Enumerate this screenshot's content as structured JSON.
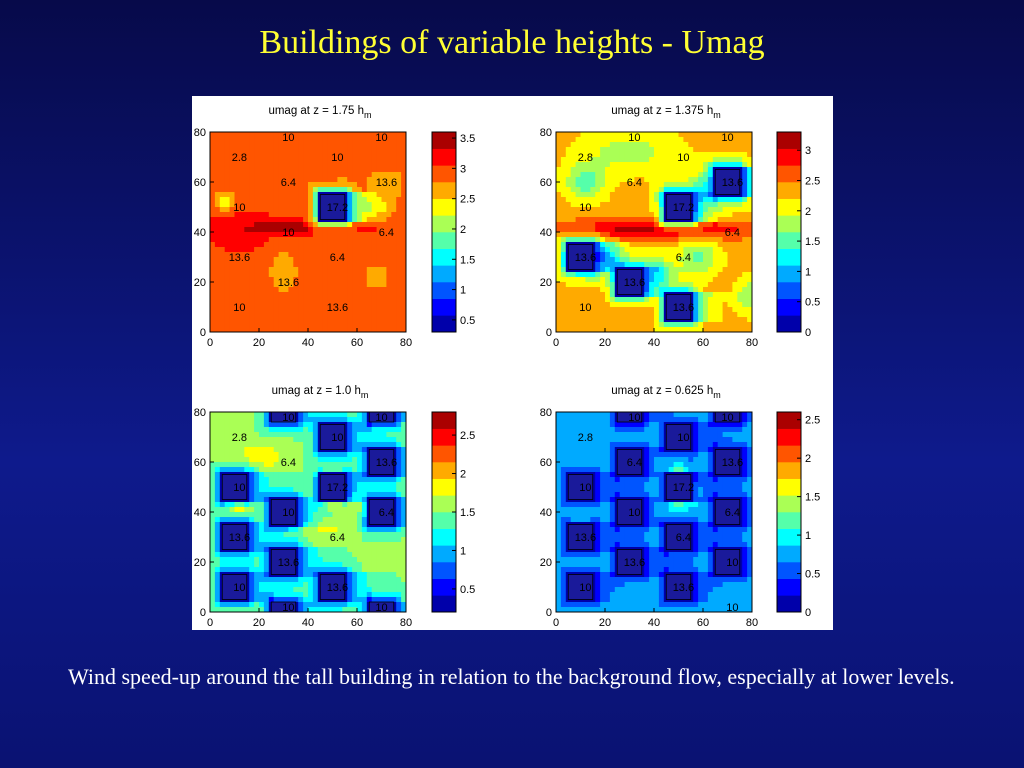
{
  "slide": {
    "title": "Buildings of variable heights - Umag",
    "caption": "Wind speed-up around the tall building in relation to the background flow, especially at lower levels."
  },
  "colors": {
    "background": "#0b1370",
    "title": "#ffff33",
    "caption": "#ffffff"
  },
  "chart_data": [
    {
      "type": "heatmap",
      "title": "umag at z = 1.75 h",
      "title_sub": "m",
      "xlim": [
        0,
        80
      ],
      "ylim": [
        0,
        80
      ],
      "xticks": [
        "0",
        "20",
        "40",
        "60",
        "80"
      ],
      "yticks": [
        "0",
        "20",
        "40",
        "60",
        "80"
      ],
      "colorbar": {
        "min": 0.3,
        "max": 3.6,
        "ticks": [
          "0.5",
          "1",
          "1.5",
          "2",
          "2.5",
          "3",
          "3.5"
        ],
        "tick_values": [
          0.5,
          1,
          1.5,
          2,
          2.5,
          3,
          3.5
        ]
      },
      "background_value": 2.95,
      "features": [
        {
          "x": 40,
          "y": 42,
          "sx": 16,
          "sy": 2.5,
          "a": 0.55
        },
        {
          "x": 12,
          "y": 40,
          "sx": 10,
          "sy": 6,
          "a": 0.25
        },
        {
          "x": 72,
          "y": 60,
          "sx": 6,
          "sy": 4,
          "a": -0.35
        },
        {
          "x": 66,
          "y": 50,
          "sx": 6,
          "sy": 3,
          "a": -0.5
        },
        {
          "x": 30,
          "y": 24,
          "sx": 5,
          "sy": 8,
          "a": -0.3
        },
        {
          "x": 68,
          "y": 22,
          "sx": 5,
          "sy": 6,
          "a": -0.25
        },
        {
          "x": 6,
          "y": 52,
          "sx": 3,
          "sy": 3,
          "a": -0.6
        }
      ],
      "buildings": [
        {
          "x0": 45,
          "y0": 45,
          "x1": 55,
          "y1": 55
        }
      ],
      "labels": [
        {
          "x": 32,
          "y": 78,
          "text": "10"
        },
        {
          "x": 70,
          "y": 78,
          "text": "10"
        },
        {
          "x": 12,
          "y": 70,
          "text": "2.8"
        },
        {
          "x": 52,
          "y": 70,
          "text": "10"
        },
        {
          "x": 32,
          "y": 60,
          "text": "6.4"
        },
        {
          "x": 72,
          "y": 60,
          "text": "13.6"
        },
        {
          "x": 12,
          "y": 50,
          "text": "10"
        },
        {
          "x": 52,
          "y": 50,
          "text": "17.2"
        },
        {
          "x": 32,
          "y": 40,
          "text": "10"
        },
        {
          "x": 72,
          "y": 40,
          "text": "6.4"
        },
        {
          "x": 12,
          "y": 30,
          "text": "13.6"
        },
        {
          "x": 52,
          "y": 30,
          "text": "6.4"
        },
        {
          "x": 32,
          "y": 20,
          "text": "13.6"
        },
        {
          "x": 12,
          "y": 10,
          "text": "10"
        },
        {
          "x": 52,
          "y": 10,
          "text": "13.6"
        }
      ]
    },
    {
      "type": "heatmap",
      "title": "umag at z = 1.375 h",
      "title_sub": "m",
      "xlim": [
        0,
        80
      ],
      "ylim": [
        0,
        80
      ],
      "xticks": [
        "0",
        "20",
        "40",
        "60",
        "80"
      ],
      "yticks": [
        "0",
        "20",
        "40",
        "60",
        "80"
      ],
      "colorbar": {
        "min": 0,
        "max": 3.3,
        "ticks": [
          "0",
          "0.5",
          "1",
          "1.5",
          "2",
          "2.5",
          "3"
        ],
        "tick_values": [
          0,
          0.5,
          1,
          1.5,
          2,
          2.5,
          3
        ]
      },
      "background_value": 2.3,
      "features": [
        {
          "x": 40,
          "y": 41,
          "sx": 30,
          "sy": 3,
          "a": 0.9
        },
        {
          "x": 40,
          "y": 10,
          "sx": 28,
          "sy": 6,
          "a": 0.25
        },
        {
          "x": 30,
          "y": 72,
          "sx": 14,
          "sy": 6,
          "a": -0.5
        },
        {
          "x": 12,
          "y": 60,
          "sx": 6,
          "sy": 5,
          "a": -0.8
        },
        {
          "x": 62,
          "y": 58,
          "sx": 5,
          "sy": 4,
          "a": -0.8
        },
        {
          "x": 58,
          "y": 30,
          "sx": 6,
          "sy": 5,
          "a": -0.7
        },
        {
          "x": 42,
          "y": 24,
          "sx": 4,
          "sy": 4,
          "a": -0.8
        },
        {
          "x": 80,
          "y": 14,
          "sx": 5,
          "sy": 5,
          "a": -0.7
        },
        {
          "x": 20,
          "y": 30,
          "sx": 5,
          "sy": 4,
          "a": -0.9
        }
      ],
      "buildings": [
        {
          "x0": 45,
          "y0": 45,
          "x1": 55,
          "y1": 55
        },
        {
          "x0": 65,
          "y0": 55,
          "x1": 75,
          "y1": 65
        },
        {
          "x0": 5,
          "y0": 25,
          "x1": 15,
          "y1": 35
        },
        {
          "x0": 25,
          "y0": 15,
          "x1": 35,
          "y1": 25
        },
        {
          "x0": 45,
          "y0": 5,
          "x1": 55,
          "y1": 15
        }
      ],
      "labels": [
        {
          "x": 32,
          "y": 78,
          "text": "10"
        },
        {
          "x": 70,
          "y": 78,
          "text": "10"
        },
        {
          "x": 12,
          "y": 70,
          "text": "2.8"
        },
        {
          "x": 52,
          "y": 70,
          "text": "10"
        },
        {
          "x": 32,
          "y": 60,
          "text": "6.4"
        },
        {
          "x": 72,
          "y": 60,
          "text": "13.6"
        },
        {
          "x": 12,
          "y": 50,
          "text": "10"
        },
        {
          "x": 52,
          "y": 50,
          "text": "17.2"
        },
        {
          "x": 72,
          "y": 40,
          "text": "6.4"
        },
        {
          "x": 12,
          "y": 30,
          "text": "13.6"
        },
        {
          "x": 52,
          "y": 30,
          "text": "6.4"
        },
        {
          "x": 32,
          "y": 20,
          "text": "13.6"
        },
        {
          "x": 12,
          "y": 10,
          "text": "10"
        },
        {
          "x": 52,
          "y": 10,
          "text": "13.6"
        }
      ]
    },
    {
      "type": "heatmap",
      "title": "umag at z = 1.0 h",
      "title_sub": "m",
      "xlim": [
        0,
        80
      ],
      "ylim": [
        0,
        80
      ],
      "xticks": [
        "0",
        "20",
        "40",
        "60",
        "80"
      ],
      "yticks": [
        "0",
        "20",
        "40",
        "60",
        "80"
      ],
      "colorbar": {
        "min": 0.2,
        "max": 2.8,
        "ticks": [
          "0.5",
          "1",
          "1.5",
          "2",
          "2.5"
        ],
        "tick_values": [
          0.5,
          1,
          1.5,
          2,
          2.5
        ]
      },
      "background_value": 1.55,
      "features": [
        {
          "x": 50,
          "y": 44,
          "sx": 4,
          "sy": 1.8,
          "a": 1.1
        },
        {
          "x": 50,
          "y": 56,
          "sx": 4,
          "sy": 1.8,
          "a": 1.0
        },
        {
          "x": 12,
          "y": 42,
          "sx": 4,
          "sy": 2,
          "a": 0.7
        },
        {
          "x": 62,
          "y": 44,
          "sx": 10,
          "sy": 3,
          "a": 0.5
        },
        {
          "x": 40,
          "y": 34,
          "sx": 18,
          "sy": 3,
          "a": 0.25
        },
        {
          "x": 20,
          "y": 62,
          "sx": 8,
          "sy": 4,
          "a": 0.3
        }
      ],
      "buildings": [
        {
          "x0": 5,
          "y0": 45,
          "x1": 15,
          "y1": 55
        },
        {
          "x0": 25,
          "y0": 35,
          "x1": 35,
          "y1": 45
        },
        {
          "x0": 45,
          "y0": 45,
          "x1": 55,
          "y1": 55
        },
        {
          "x0": 65,
          "y0": 35,
          "x1": 75,
          "y1": 45
        },
        {
          "x0": 5,
          "y0": 25,
          "x1": 15,
          "y1": 35
        },
        {
          "x0": 25,
          "y0": 15,
          "x1": 35,
          "y1": 25
        },
        {
          "x0": 45,
          "y0": 5,
          "x1": 55,
          "y1": 15
        },
        {
          "x0": 5,
          "y0": 5,
          "x1": 15,
          "y1": 15
        },
        {
          "x0": 25,
          "y0": 0,
          "x1": 35,
          "y1": 4
        },
        {
          "x0": 65,
          "y0": 0,
          "x1": 75,
          "y1": 4
        },
        {
          "x0": 45,
          "y0": 65,
          "x1": 55,
          "y1": 75
        },
        {
          "x0": 65,
          "y0": 55,
          "x1": 75,
          "y1": 65
        },
        {
          "x0": 25,
          "y0": 76,
          "x1": 35,
          "y1": 80
        },
        {
          "x0": 65,
          "y0": 76,
          "x1": 75,
          "y1": 80
        }
      ],
      "labels": [
        {
          "x": 32,
          "y": 78,
          "text": "10"
        },
        {
          "x": 70,
          "y": 78,
          "text": "10"
        },
        {
          "x": 12,
          "y": 70,
          "text": "2.8"
        },
        {
          "x": 52,
          "y": 70,
          "text": "10"
        },
        {
          "x": 32,
          "y": 60,
          "text": "6.4"
        },
        {
          "x": 72,
          "y": 60,
          "text": "13.6"
        },
        {
          "x": 12,
          "y": 50,
          "text": "10"
        },
        {
          "x": 52,
          "y": 50,
          "text": "17.2"
        },
        {
          "x": 32,
          "y": 40,
          "text": "10"
        },
        {
          "x": 72,
          "y": 40,
          "text": "6.4"
        },
        {
          "x": 12,
          "y": 30,
          "text": "13.6"
        },
        {
          "x": 52,
          "y": 30,
          "text": "6.4"
        },
        {
          "x": 32,
          "y": 20,
          "text": "13.6"
        },
        {
          "x": 12,
          "y": 10,
          "text": "10"
        },
        {
          "x": 52,
          "y": 10,
          "text": "13.6"
        },
        {
          "x": 32,
          "y": 2,
          "text": "10"
        },
        {
          "x": 70,
          "y": 2,
          "text": "10"
        }
      ]
    },
    {
      "type": "heatmap",
      "title": "umag at z = 0.625 h",
      "title_sub": "m",
      "xlim": [
        0,
        80
      ],
      "ylim": [
        0,
        80
      ],
      "xticks": [
        "0",
        "20",
        "40",
        "60",
        "80"
      ],
      "yticks": [
        "0",
        "20",
        "40",
        "60",
        "80"
      ],
      "colorbar": {
        "min": 0,
        "max": 2.6,
        "ticks": [
          "0",
          "0.5",
          "1",
          "1.5",
          "2",
          "2.5"
        ],
        "tick_values": [
          0,
          0.5,
          1,
          1.5,
          2,
          2.5
        ]
      },
      "background_value": 0.85,
      "features": [
        {
          "x": 50,
          "y": 44,
          "sx": 3.5,
          "sy": 1.8,
          "a": 1.5
        },
        {
          "x": 50,
          "y": 56,
          "sx": 3.5,
          "sy": 1.8,
          "a": 1.4
        },
        {
          "x": 10,
          "y": 32,
          "sx": 3,
          "sy": 4,
          "a": 1.0
        },
        {
          "x": 56,
          "y": 48,
          "sx": 3,
          "sy": 4,
          "a": 0.7
        },
        {
          "x": 40,
          "y": 42,
          "sx": 5,
          "sy": 3,
          "a": 0.35
        },
        {
          "x": 40,
          "y": 58,
          "sx": 5,
          "sy": 3,
          "a": 0.3
        }
      ],
      "buildings": [
        {
          "x0": 5,
          "y0": 45,
          "x1": 15,
          "y1": 55
        },
        {
          "x0": 25,
          "y0": 35,
          "x1": 35,
          "y1": 45
        },
        {
          "x0": 45,
          "y0": 45,
          "x1": 55,
          "y1": 55
        },
        {
          "x0": 65,
          "y0": 35,
          "x1": 75,
          "y1": 45
        },
        {
          "x0": 5,
          "y0": 25,
          "x1": 15,
          "y1": 35
        },
        {
          "x0": 25,
          "y0": 15,
          "x1": 35,
          "y1": 25
        },
        {
          "x0": 45,
          "y0": 25,
          "x1": 55,
          "y1": 35
        },
        {
          "x0": 65,
          "y0": 15,
          "x1": 75,
          "y1": 25
        },
        {
          "x0": 45,
          "y0": 5,
          "x1": 55,
          "y1": 15
        },
        {
          "x0": 5,
          "y0": 5,
          "x1": 15,
          "y1": 15
        },
        {
          "x0": 25,
          "y0": 55,
          "x1": 35,
          "y1": 65
        },
        {
          "x0": 45,
          "y0": 65,
          "x1": 55,
          "y1": 75
        },
        {
          "x0": 65,
          "y0": 55,
          "x1": 75,
          "y1": 65
        },
        {
          "x0": 25,
          "y0": 76,
          "x1": 35,
          "y1": 80
        },
        {
          "x0": 65,
          "y0": 76,
          "x1": 75,
          "y1": 80
        }
      ],
      "labels": [
        {
          "x": 32,
          "y": 78,
          "text": "10"
        },
        {
          "x": 70,
          "y": 78,
          "text": "10"
        },
        {
          "x": 12,
          "y": 70,
          "text": "2.8"
        },
        {
          "x": 52,
          "y": 70,
          "text": "10"
        },
        {
          "x": 32,
          "y": 60,
          "text": "6.4"
        },
        {
          "x": 72,
          "y": 60,
          "text": "13.6"
        },
        {
          "x": 12,
          "y": 50,
          "text": "10"
        },
        {
          "x": 52,
          "y": 50,
          "text": "17.2"
        },
        {
          "x": 32,
          "y": 40,
          "text": "10"
        },
        {
          "x": 72,
          "y": 40,
          "text": "6.4"
        },
        {
          "x": 12,
          "y": 30,
          "text": "13.6"
        },
        {
          "x": 52,
          "y": 30,
          "text": "6.4"
        },
        {
          "x": 32,
          "y": 20,
          "text": "13.6"
        },
        {
          "x": 72,
          "y": 20,
          "text": "10"
        },
        {
          "x": 12,
          "y": 10,
          "text": "10"
        },
        {
          "x": 52,
          "y": 10,
          "text": "13.6"
        },
        {
          "x": 72,
          "y": 2,
          "text": "10"
        }
      ]
    }
  ]
}
